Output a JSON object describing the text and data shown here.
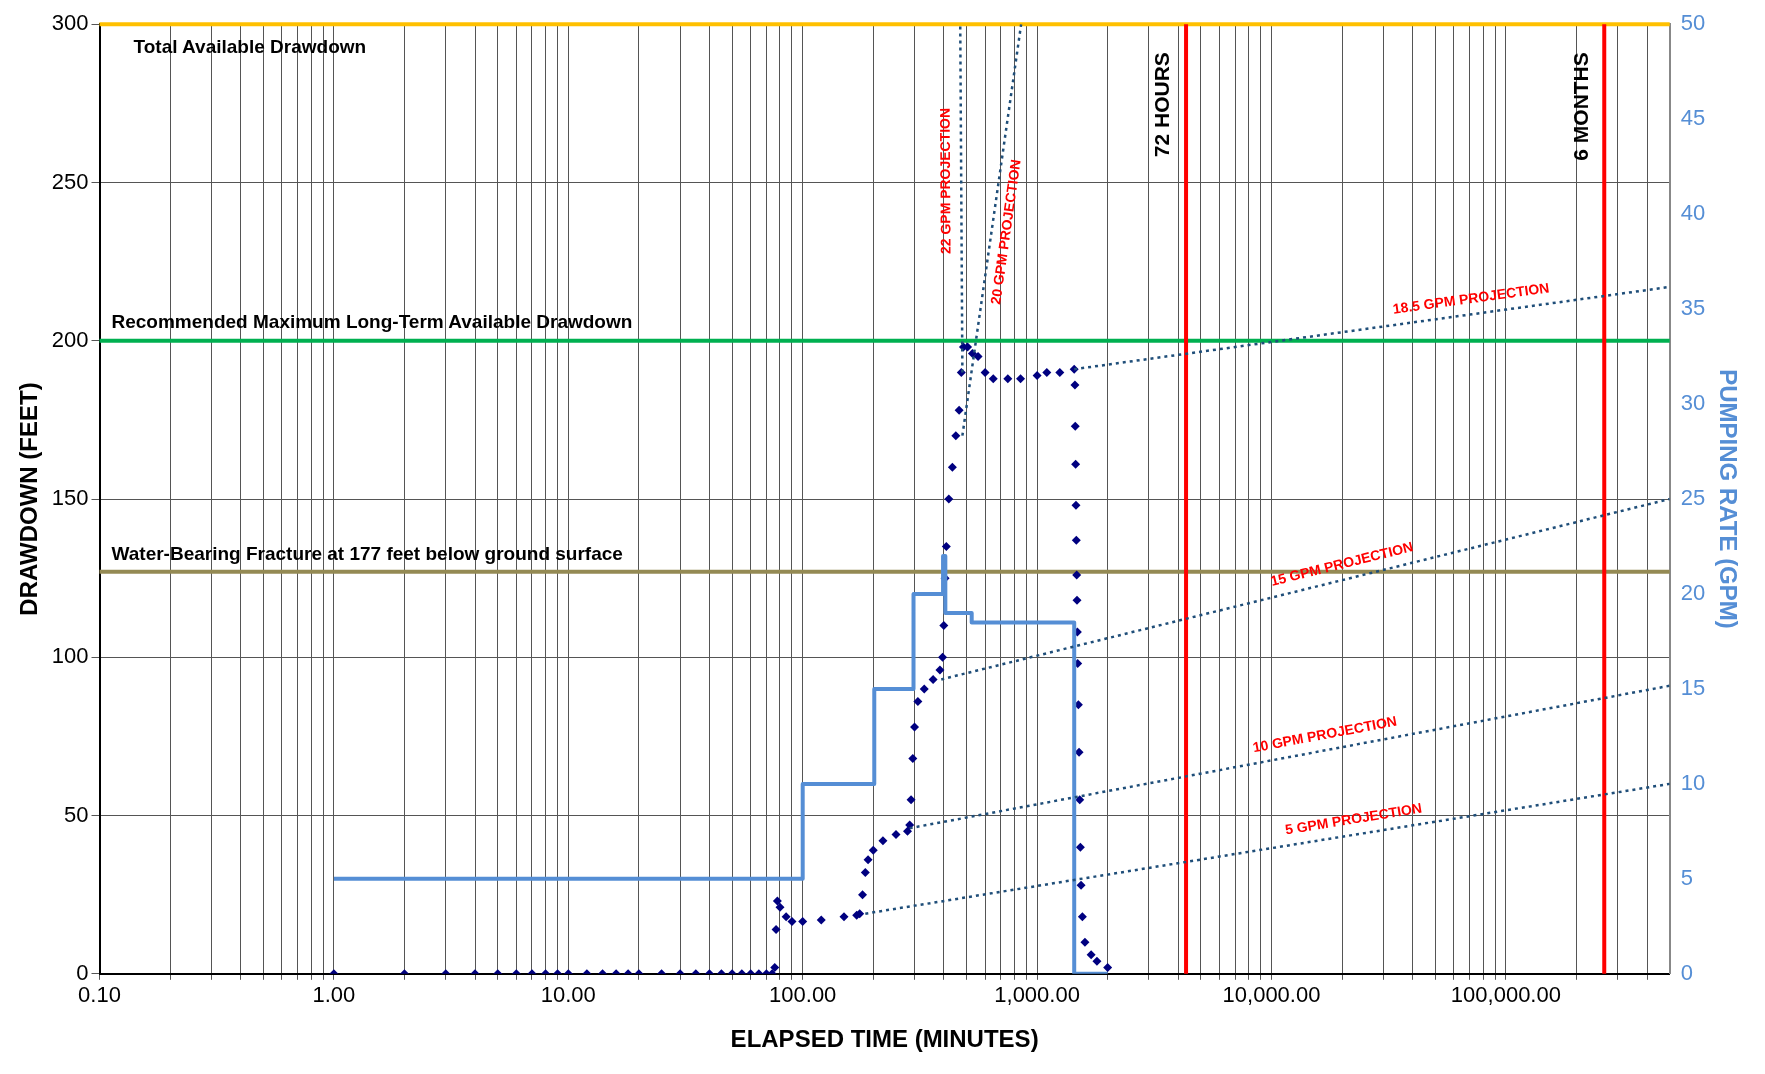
{
  "chart_data": {
    "type": "scatter",
    "xlabel": "ELAPSED TIME (MINUTES)",
    "ylabel": "DRAWDOWN (FEET)",
    "y2label": "PUMPING RATE (GPM)",
    "log": "x",
    "grid": true,
    "xlim": [
      0.1,
      500000
    ],
    "xticks": [
      {
        "value": 0.1,
        "label": "0.10"
      },
      {
        "value": 0.2,
        "label": null
      },
      {
        "value": 0.3,
        "label": null
      },
      {
        "value": 0.4,
        "label": null
      },
      {
        "value": 0.5,
        "label": null
      },
      {
        "value": 0.6,
        "label": null
      },
      {
        "value": 0.7,
        "label": null
      },
      {
        "value": 0.8,
        "label": null
      },
      {
        "value": 0.9,
        "label": null
      },
      {
        "value": 1,
        "label": "1.00"
      },
      {
        "value": 2,
        "label": null
      },
      {
        "value": 3,
        "label": null
      },
      {
        "value": 4,
        "label": null
      },
      {
        "value": 5,
        "label": null
      },
      {
        "value": 6,
        "label": null
      },
      {
        "value": 7,
        "label": null
      },
      {
        "value": 8,
        "label": null
      },
      {
        "value": 9,
        "label": null
      },
      {
        "value": 10,
        "label": "10.00"
      },
      {
        "value": 20,
        "label": null
      },
      {
        "value": 30,
        "label": null
      },
      {
        "value": 40,
        "label": null
      },
      {
        "value": 50,
        "label": null
      },
      {
        "value": 60,
        "label": null
      },
      {
        "value": 70,
        "label": null
      },
      {
        "value": 80,
        "label": null
      },
      {
        "value": 90,
        "label": null
      },
      {
        "value": 100,
        "label": "100.00"
      },
      {
        "value": 200,
        "label": null
      },
      {
        "value": 300,
        "label": null
      },
      {
        "value": 400,
        "label": null
      },
      {
        "value": 500,
        "label": null
      },
      {
        "value": 600,
        "label": null
      },
      {
        "value": 700,
        "label": null
      },
      {
        "value": 800,
        "label": null
      },
      {
        "value": 900,
        "label": null
      },
      {
        "value": 1000,
        "label": "1,000.00"
      },
      {
        "value": 2000,
        "label": null
      },
      {
        "value": 3000,
        "label": null
      },
      {
        "value": 4000,
        "label": null
      },
      {
        "value": 5000,
        "label": null
      },
      {
        "value": 6000,
        "label": null
      },
      {
        "value": 7000,
        "label": null
      },
      {
        "value": 8000,
        "label": null
      },
      {
        "value": 9000,
        "label": null
      },
      {
        "value": 10000,
        "label": "10,000.00"
      },
      {
        "value": 20000,
        "label": null
      },
      {
        "value": 30000,
        "label": null
      },
      {
        "value": 40000,
        "label": null
      },
      {
        "value": 50000,
        "label": null
      },
      {
        "value": 60000,
        "label": null
      },
      {
        "value": 70000,
        "label": null
      },
      {
        "value": 80000,
        "label": null
      },
      {
        "value": 90000,
        "label": null
      },
      {
        "value": 100000,
        "label": "100,000.00"
      },
      {
        "value": 200000,
        "label": null
      },
      {
        "value": 300000,
        "label": null
      },
      {
        "value": 400000,
        "label": null
      }
    ],
    "ylim": [
      0,
      300
    ],
    "yticks": [
      0,
      50,
      100,
      150,
      200,
      250,
      300
    ],
    "y2lim": [
      0,
      50
    ],
    "y2ticks": [
      0,
      5,
      10,
      15,
      20,
      25,
      30,
      35,
      40,
      45,
      50
    ],
    "ref_lines": [
      {
        "axis": "y",
        "value": 300,
        "label": "Total Available Drawdown",
        "color": "#ffc000"
      },
      {
        "axis": "y",
        "value": 200,
        "label": "Recommended Maximum Long-Term Available Drawdown",
        "color": "#00b050"
      },
      {
        "axis": "y",
        "value": 127,
        "label": "Water-Bearing Fracture at 177 feet below ground surface",
        "color": "#948a54"
      },
      {
        "axis": "x",
        "value": 4320,
        "label": "72 HOURS",
        "color": "#ff0000"
      },
      {
        "axis": "x",
        "value": 262800,
        "label": "6 MONTHS",
        "color": "#ff0000"
      }
    ],
    "series": [
      {
        "type": "scatter",
        "marker": "diamond",
        "color": "#000080",
        "x": [
          1,
          2,
          3,
          4,
          5,
          6,
          7,
          8,
          9,
          10,
          12,
          14,
          16,
          18,
          20,
          25,
          30,
          35,
          40,
          45,
          50,
          55,
          60,
          65,
          70,
          74,
          76,
          77,
          78,
          80,
          85,
          90,
          100,
          120,
          150,
          170,
          175,
          180,
          185,
          190,
          200,
          220,
          250,
          280,
          286,
          290,
          295,
          300,
          310,
          330,
          360,
          385,
          395,
          400,
          405,
          410,
          420,
          435,
          450,
          465,
          475,
          485,
          505,
          530,
          560,
          600,
          650,
          750,
          850,
          1000,
          1100,
          1250,
          1440,
          1450,
          1455,
          1460,
          1465,
          1470,
          1475,
          1480,
          1485,
          1490,
          1500,
          1510,
          1520,
          1530,
          1540,
          1560,
          1600,
          1700,
          1800,
          2000
        ],
        "values": [
          0,
          0,
          0,
          0,
          0,
          0,
          0,
          0,
          0,
          0,
          0,
          0,
          0,
          0,
          0,
          0,
          0,
          0,
          0,
          0,
          0,
          0,
          0,
          0,
          0,
          0,
          2,
          14,
          23,
          21,
          18,
          16.5,
          16.5,
          17,
          18,
          18.5,
          19,
          25,
          32,
          36,
          39,
          42,
          44,
          45,
          47,
          55,
          68,
          78,
          86,
          90,
          93,
          96,
          100,
          110,
          125,
          135,
          150,
          160,
          170,
          178,
          190,
          198,
          198,
          196,
          195,
          190,
          188,
          188,
          188,
          189,
          190,
          190,
          191,
          186,
          173,
          161,
          148,
          137,
          126,
          118,
          108,
          98,
          85,
          70,
          55,
          40,
          28,
          18,
          10,
          6,
          4,
          2
        ]
      },
      {
        "type": "step",
        "axis": "y2",
        "marker": "none",
        "color": "#558ed5",
        "x": [
          1,
          100,
          202,
          297,
          397,
          406,
          526,
          1440,
          2000
        ],
        "values": [
          5,
          10,
          15,
          20,
          22,
          19,
          18.5,
          0,
          0
        ]
      },
      {
        "type": "line",
        "name": "22 GPM PROJECTION",
        "marker": "none",
        "line_style": "dotted",
        "color": "#1f4e79",
        "x": [
          480,
          470
        ],
        "values": [
          190,
          300
        ]
      },
      {
        "type": "line",
        "name": "20 GPM PROJECTION",
        "marker": "none",
        "line_style": "dotted",
        "color": "#1f4e79",
        "x": [
          480,
          855
        ],
        "values": [
          170,
          300
        ]
      },
      {
        "type": "line",
        "name": "18.5 GPM PROJECTION",
        "marker": "none",
        "line_style": "dotted",
        "color": "#1f4e79",
        "x": [
          1440,
          500000
        ],
        "values": [
          191,
          217
        ]
      },
      {
        "type": "line",
        "name": "15 GPM PROJECTION",
        "marker": "none",
        "line_style": "dotted",
        "color": "#1f4e79",
        "x": [
          390,
          500000
        ],
        "values": [
          93,
          150
        ]
      },
      {
        "type": "line",
        "name": "10 GPM PROJECTION",
        "marker": "none",
        "line_style": "dotted",
        "color": "#1f4e79",
        "x": [
          286,
          500000
        ],
        "values": [
          46,
          91
        ]
      },
      {
        "type": "line",
        "name": "5 GPM PROJECTION",
        "marker": "none",
        "line_style": "dotted",
        "color": "#1f4e79",
        "x": [
          185,
          500000
        ],
        "values": [
          19,
          60
        ]
      }
    ]
  }
}
